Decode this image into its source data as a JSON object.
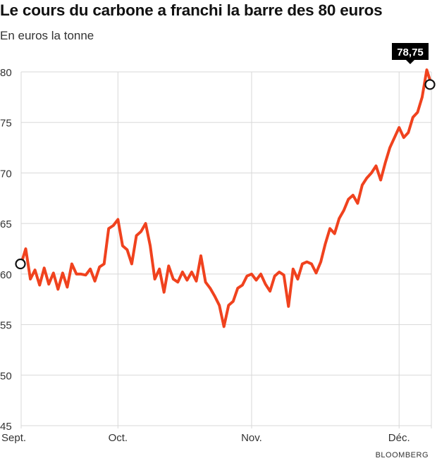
{
  "title": "Le cours du carbone a franchi la barre des 80 euros",
  "subtitle": "En euros la tonne",
  "source": "BLOOMBERG",
  "colors": {
    "line": "#f0421e",
    "grid": "#d8d8d8",
    "callout_bg": "#000000"
  },
  "chart_data": {
    "type": "line",
    "title": "Le cours du carbone a franchi la barre des 80 euros",
    "ylabel": "En euros la tonne",
    "ylim": [
      45,
      80
    ],
    "yticks": [
      80,
      75,
      70,
      65,
      60,
      55,
      50,
      45
    ],
    "xticks": [
      {
        "label": "Sept.",
        "index": 0
      },
      {
        "label": "Oct.",
        "index": 21
      },
      {
        "label": "Nov.",
        "index": 50
      },
      {
        "label": "Déc.",
        "index": 82
      }
    ],
    "grid": true,
    "annotation": {
      "label": "78,75",
      "value": 78.75
    },
    "start_marker_value": 61.0,
    "end_marker_value": 78.75,
    "series": [
      {
        "values": [
          61.0,
          62.5,
          59.5,
          60.4,
          58.9,
          60.6,
          59.0,
          60.1,
          58.5,
          60.1,
          58.7,
          61.0,
          60.0,
          60.0,
          59.9,
          60.5,
          59.3,
          60.7,
          61.0,
          64.5,
          64.8,
          65.4,
          62.8,
          62.4,
          61.0,
          63.8,
          64.2,
          65.0,
          62.8,
          59.5,
          60.5,
          58.2,
          60.8,
          59.5,
          59.2,
          60.2,
          59.4,
          60.2,
          59.3,
          61.8,
          59.2,
          58.6,
          57.8,
          56.9,
          54.8,
          56.9,
          57.3,
          58.6,
          58.9,
          59.8,
          60.0,
          59.4,
          60.0,
          59.0,
          58.3,
          59.8,
          60.2,
          59.9,
          56.8,
          60.5,
          59.5,
          61.0,
          61.2,
          61.0,
          60.1,
          61.2,
          63.0,
          64.5,
          64.0,
          65.5,
          66.3,
          67.4,
          67.8,
          67.0,
          68.8,
          69.5,
          70.0,
          70.7,
          69.3,
          71.0,
          72.5,
          73.5,
          74.5,
          73.5,
          74.0,
          75.5,
          76.0,
          77.5,
          80.2,
          78.75
        ]
      }
    ]
  }
}
